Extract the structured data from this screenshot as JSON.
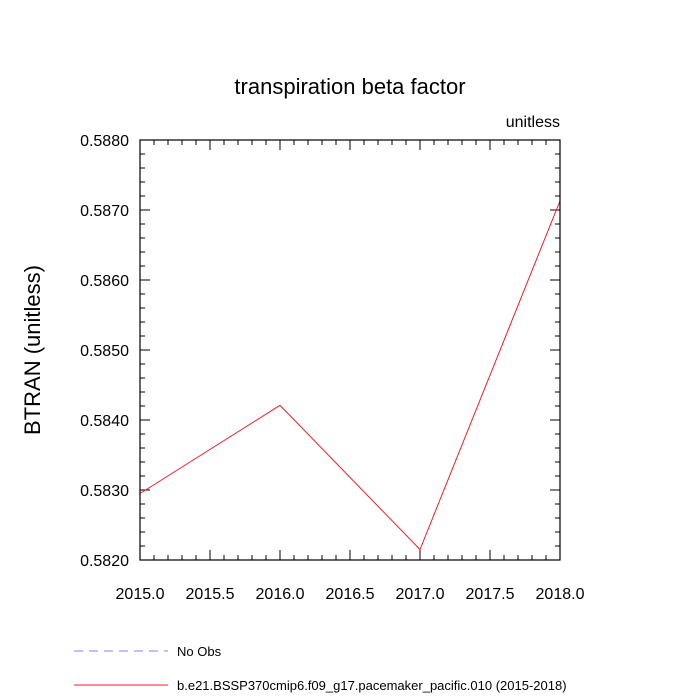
{
  "chart_data": {
    "type": "line",
    "title": "transpiration beta factor",
    "units_label": "unitless",
    "ylabel": "BTRAN  (unitless)",
    "xlabel": "",
    "xlim": [
      2015.0,
      2018.0
    ],
    "ylim": [
      0.582,
      0.588
    ],
    "x_ticks": [
      2015.0,
      2015.5,
      2016.0,
      2016.5,
      2017.0,
      2017.5,
      2018.0
    ],
    "x_tick_labels": [
      "2015.0",
      "2015.5",
      "2016.0",
      "2016.5",
      "2017.0",
      "2017.5",
      "2018.0"
    ],
    "y_ticks": [
      0.582,
      0.583,
      0.584,
      0.585,
      0.586,
      0.587,
      0.588
    ],
    "y_tick_labels": [
      "0.5820",
      "0.5830",
      "0.5840",
      "0.5850",
      "0.5860",
      "0.5870",
      "0.5880"
    ],
    "series": [
      {
        "name": "b.e21.BSSP370cmip6.f09_g17.pacemaker_pacific.010 (2015-2018)",
        "color": "#e8202a",
        "dash": "solid",
        "x": [
          2015.0,
          2016.0,
          2017.0,
          2018.0
        ],
        "y": [
          0.58295,
          0.58421,
          0.58215,
          0.58713
        ]
      }
    ],
    "legend": {
      "placement": "bottom-left",
      "entries": [
        {
          "label": "No Obs",
          "color": "#8080ff",
          "dash": "dashed"
        },
        {
          "label": "b.e21.BSSP370cmip6.f09_g17.pacemaker_pacific.010 (2015-2018)",
          "color": "#e8202a",
          "dash": "solid"
        }
      ]
    },
    "grid": false
  }
}
